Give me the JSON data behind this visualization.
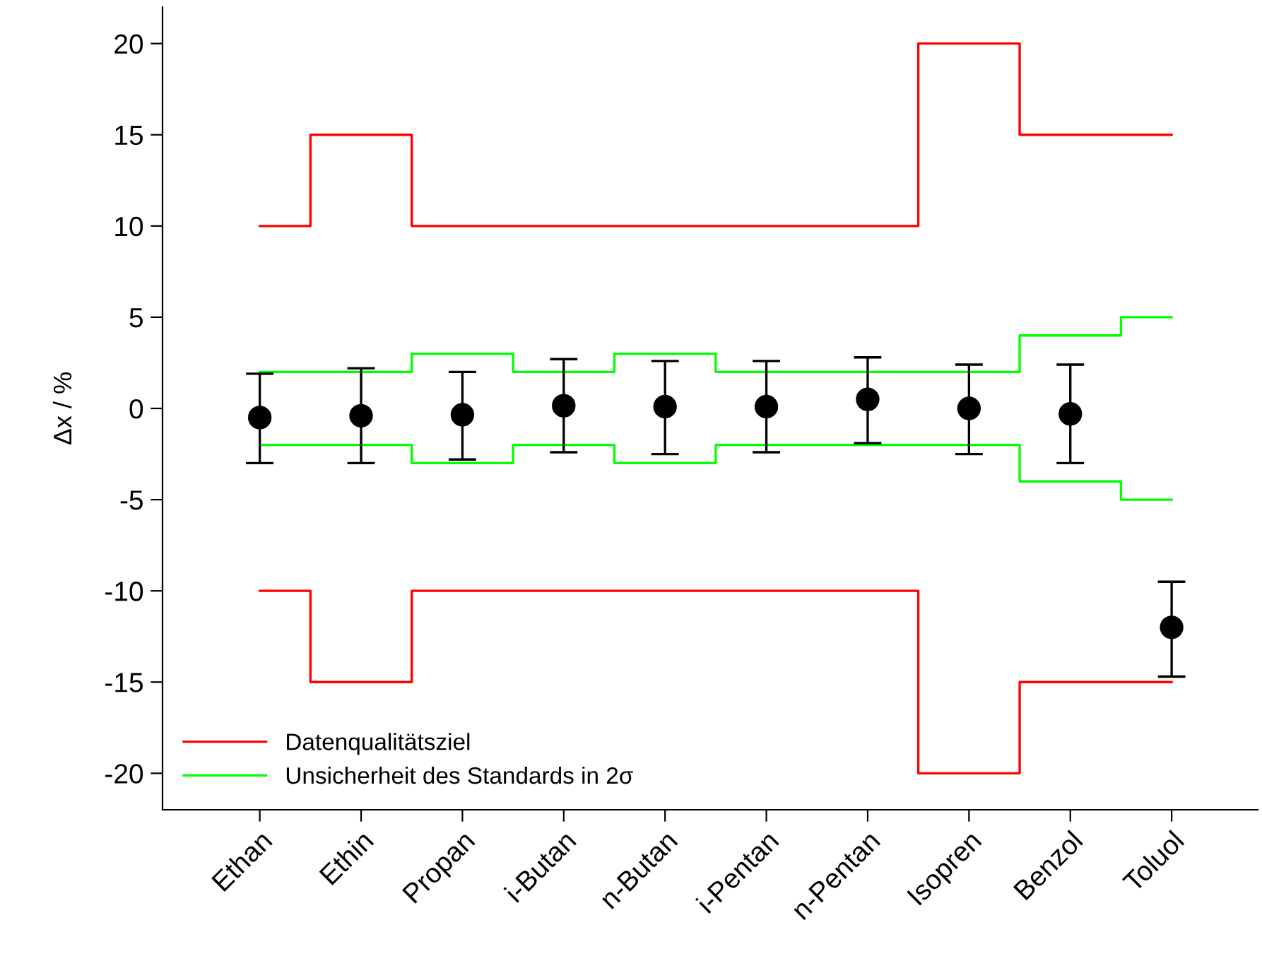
{
  "chart_data": {
    "type": "scatter",
    "ylabel": "Δx / %",
    "categories": [
      "Ethan",
      "Ethin",
      "Propan",
      "i-Butan",
      "n-Butan",
      "i-Pentan",
      "n-Pentan",
      "Isopren",
      "Benzol",
      "Toluol"
    ],
    "ylim": [
      -22,
      22
    ],
    "yticks": [
      -20,
      -15,
      -10,
      -5,
      0,
      5,
      10,
      15,
      20
    ],
    "grid": false,
    "legend": "bottom left",
    "series": [
      {
        "name": "Datenqualitätsziel",
        "type": "step",
        "color": "#ff0000",
        "values": [
          10,
          15,
          10,
          10,
          10,
          10,
          10,
          20,
          15,
          15
        ]
      },
      {
        "type": "step",
        "color": "#ff0000",
        "values": [
          -10,
          -15,
          -10,
          -10,
          -10,
          -10,
          -10,
          -20,
          -15,
          -15
        ]
      },
      {
        "name": "Unsicherheit des Standards in 2σ",
        "type": "step",
        "color": "#00ff00",
        "values": [
          2,
          2,
          3,
          2,
          3,
          2,
          2,
          2,
          4,
          5
        ]
      },
      {
        "type": "step",
        "color": "#00ff00",
        "values": [
          -2,
          -2,
          -3,
          -2,
          -3,
          -2,
          -2,
          -2,
          -4,
          -5
        ]
      },
      {
        "color": "#000000",
        "marker": "circle",
        "values": [
          -0.5,
          -0.4,
          -0.35,
          0.15,
          0.1,
          0.1,
          0.5,
          0,
          -0.3,
          -12.0
        ],
        "errors": [
          [
            -3.0,
            1.9
          ],
          [
            -3.0,
            2.2
          ],
          [
            -2.8,
            2.0
          ],
          [
            -2.4,
            2.7
          ],
          [
            -2.5,
            2.6
          ],
          [
            -2.4,
            2.6
          ],
          [
            -1.9,
            2.8
          ],
          [
            -2.5,
            2.4
          ],
          [
            -3.0,
            2.4
          ],
          [
            -14.7,
            -9.5
          ]
        ]
      }
    ]
  }
}
